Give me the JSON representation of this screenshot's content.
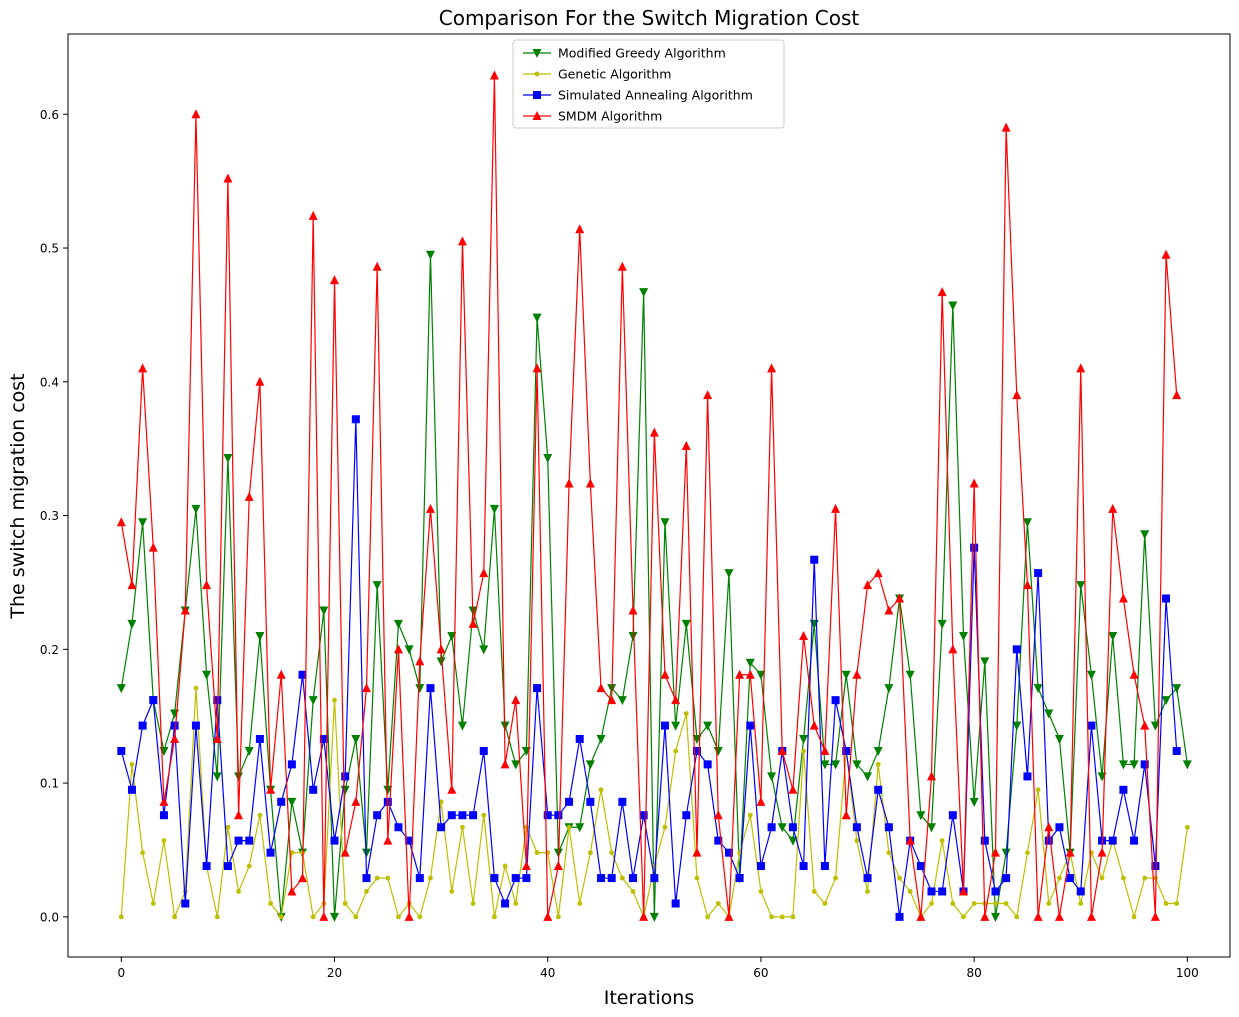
{
  "chart_data": {
    "type": "line",
    "title": "Comparison For the Switch Migration Cost",
    "xlabel": "Iterations",
    "ylabel": "The switch migration cost",
    "xlim": [
      -5,
      104
    ],
    "ylim": [
      -0.03,
      0.66
    ],
    "x_ticks": [
      0,
      20,
      40,
      60,
      80,
      100
    ],
    "y_ticks": [
      0.0,
      0.1,
      0.2,
      0.3,
      0.4,
      0.5,
      0.6
    ],
    "legend_position": "top-center",
    "grid": false,
    "series": [
      {
        "name": "Modified Greedy Algorithm",
        "color": "#008000",
        "marker": "triangle-down",
        "values": [
          0.171,
          0.219,
          0.295,
          0.162,
          0.124,
          0.152,
          0.229,
          0.305,
          0.181,
          0.105,
          0.343,
          0.105,
          0.124,
          0.21,
          0.095,
          0.0,
          0.086,
          0.048,
          0.162,
          0.229,
          0.0,
          0.095,
          0.133,
          0.048,
          0.248,
          0.095,
          0.219,
          0.2,
          0.171,
          0.495,
          0.191,
          0.21,
          0.143,
          0.229,
          0.2,
          0.305,
          0.143,
          0.114,
          0.124,
          0.448,
          0.343,
          0.048,
          0.067,
          0.067,
          0.114,
          0.133,
          0.171,
          0.162,
          0.21,
          0.467,
          0.0,
          0.295,
          0.143,
          0.219,
          0.133,
          0.143,
          0.124,
          0.257,
          0.029,
          0.19,
          0.181,
          0.105,
          0.067,
          0.057,
          0.133,
          0.219,
          0.114,
          0.114,
          0.181,
          0.114,
          0.105,
          0.124,
          0.171,
          0.238,
          0.181,
          0.076,
          0.067,
          0.219,
          0.457,
          0.21,
          0.086,
          0.191,
          0.0,
          0.048,
          0.143,
          0.295,
          0.171,
          0.152,
          0.133,
          0.048,
          0.248,
          0.181,
          0.105,
          0.21,
          0.114,
          0.114,
          0.286,
          0.143,
          0.162,
          0.171,
          0.114
        ]
      },
      {
        "name": "Genetic Algorithm",
        "color": "#bfbf00",
        "marker": "point",
        "values": [
          0.0,
          0.114,
          0.048,
          0.01,
          0.057,
          0.0,
          0.019,
          0.171,
          0.038,
          0.0,
          0.067,
          0.019,
          0.038,
          0.076,
          0.01,
          0.0,
          0.048,
          0.048,
          0.0,
          0.01,
          0.162,
          0.01,
          0.0,
          0.019,
          0.029,
          0.029,
          0.0,
          0.01,
          0.0,
          0.029,
          0.086,
          0.019,
          0.067,
          0.01,
          0.076,
          0.0,
          0.038,
          0.01,
          0.067,
          0.048,
          0.048,
          0.0,
          0.067,
          0.01,
          0.048,
          0.095,
          0.048,
          0.029,
          0.019,
          0.0,
          0.038,
          0.067,
          0.124,
          0.152,
          0.029,
          0.0,
          0.01,
          0.0,
          0.048,
          0.076,
          0.019,
          0.0,
          0.0,
          0.0,
          0.124,
          0.019,
          0.01,
          0.029,
          0.124,
          0.057,
          0.019,
          0.114,
          0.048,
          0.029,
          0.019,
          0.0,
          0.01,
          0.057,
          0.01,
          0.0,
          0.01,
          0.01,
          0.01,
          0.01,
          0.0,
          0.048,
          0.095,
          0.01,
          0.029,
          0.048,
          0.01,
          0.048,
          0.029,
          0.057,
          0.029,
          0.0,
          0.029,
          0.029,
          0.01,
          0.01,
          0.067
        ]
      },
      {
        "name": "Simulated Annealing Algorithm",
        "color": "#0000ff",
        "marker": "square",
        "values": [
          0.124,
          0.095,
          0.143,
          0.162,
          0.076,
          0.143,
          0.01,
          0.143,
          0.038,
          0.162,
          0.038,
          0.057,
          0.057,
          0.133,
          0.048,
          0.086,
          0.114,
          0.181,
          0.095,
          0.133,
          0.057,
          0.105,
          0.372,
          0.029,
          0.076,
          0.086,
          0.067,
          0.057,
          0.029,
          0.171,
          0.067,
          0.076,
          0.076,
          0.076,
          0.124,
          0.029,
          0.01,
          0.029,
          0.029,
          0.171,
          0.076,
          0.076,
          0.086,
          0.133,
          0.086,
          0.029,
          0.029,
          0.086,
          0.029,
          0.076,
          0.029,
          0.143,
          0.01,
          0.076,
          0.124,
          0.114,
          0.057,
          0.048,
          0.029,
          0.143,
          0.038,
          0.067,
          0.124,
          0.067,
          0.038,
          0.267,
          0.038,
          0.162,
          0.124,
          0.067,
          0.029,
          0.095,
          0.067,
          0.0,
          0.057,
          0.038,
          0.019,
          0.019,
          0.076,
          0.019,
          0.276,
          0.057,
          0.019,
          0.029,
          0.2,
          0.105,
          0.257,
          0.057,
          0.067,
          0.029,
          0.019,
          0.143,
          0.057,
          0.057,
          0.095,
          0.057,
          0.114,
          0.038,
          0.238,
          0.124
        ]
      },
      {
        "name": "SMDM Algorithm",
        "color": "#ff0000",
        "marker": "triangle-up",
        "values": [
          0.295,
          0.248,
          0.41,
          0.276,
          0.086,
          0.133,
          0.229,
          0.6,
          0.248,
          0.133,
          0.552,
          0.076,
          0.314,
          0.4,
          0.095,
          0.181,
          0.019,
          0.029,
          0.524,
          0.0,
          0.476,
          0.048,
          0.086,
          0.171,
          0.486,
          0.057,
          0.2,
          0.0,
          0.191,
          0.305,
          0.2,
          0.095,
          0.505,
          0.219,
          0.257,
          0.629,
          0.114,
          0.162,
          0.038,
          0.41,
          0.0,
          0.038,
          0.324,
          0.514,
          0.324,
          0.171,
          0.162,
          0.486,
          0.229,
          0.0,
          0.362,
          0.181,
          0.162,
          0.352,
          0.048,
          0.39,
          0.076,
          0.0,
          0.181,
          0.181,
          0.086,
          0.41,
          0.124,
          0.095,
          0.21,
          0.143,
          0.124,
          0.305,
          0.076,
          0.181,
          0.248,
          0.257,
          0.229,
          0.238,
          0.057,
          0.0,
          0.105,
          0.467,
          0.2,
          0.019,
          0.324,
          0.0,
          0.048,
          0.59,
          0.39,
          0.248,
          0.0,
          0.067,
          0.0,
          0.048,
          0.41,
          0.0,
          0.048,
          0.305,
          0.238,
          0.181,
          0.143,
          0.0,
          0.495,
          0.39
        ]
      }
    ]
  }
}
